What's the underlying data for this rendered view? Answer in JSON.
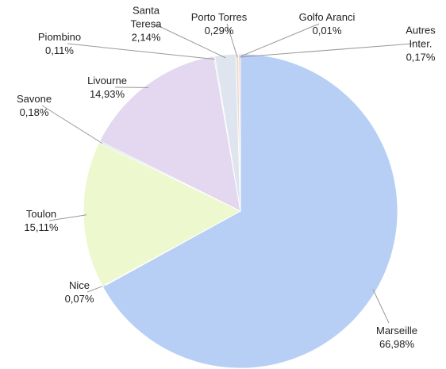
{
  "chart_data": {
    "type": "pie",
    "categories": [
      "Marseille",
      "Nice",
      "Toulon",
      "Savone",
      "Livourne",
      "Piombino",
      "Santa Teresa",
      "Porto Torres",
      "Golfo Aranci",
      "Autres Inter."
    ],
    "values": [
      66.98,
      0.07,
      15.11,
      0.18,
      14.93,
      0.11,
      2.14,
      0.29,
      0.01,
      0.17
    ],
    "value_labels": [
      "66,98%",
      "0,07%",
      "15,11%",
      "0,18%",
      "14,93%",
      "0,11%",
      "2,14%",
      "0,29%",
      "0,01%",
      "0,17%"
    ],
    "colors": [
      "#b7cff5",
      "#d8e8c0",
      "#eef8cf",
      "#d5e6e0",
      "#e3d8f0",
      "#cfe0d8",
      "#dfe5ef",
      "#e8dfd4",
      "#f0d7cf",
      "#f2c9c0"
    ]
  }
}
